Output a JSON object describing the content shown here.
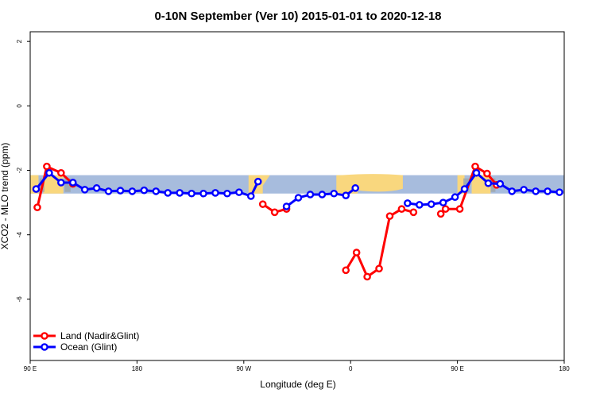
{
  "chart_data": {
    "type": "line",
    "title": "0-10N September (Ver 10)   2015-01-01 to 2020-12-18",
    "xlabel": "Longitude (deg E)",
    "ylabel": "XCO2 - MLO trend (ppm)",
    "x_ticks": [
      {
        "value": 90,
        "label": "90 E"
      },
      {
        "value": 180,
        "label": "180"
      },
      {
        "value": 270,
        "label": "90 W"
      },
      {
        "value": 360,
        "label": "0"
      },
      {
        "value": 450,
        "label": "90 E"
      },
      {
        "value": 540,
        "label": "180"
      }
    ],
    "y_ticks": [
      {
        "value": 2,
        "label": "2"
      },
      {
        "value": 0,
        "label": "0"
      },
      {
        "value": -2,
        "label": "-2"
      },
      {
        "value": -4,
        "label": "-4"
      },
      {
        "value": -6,
        "label": "-6"
      }
    ],
    "xlim": [
      90,
      540
    ],
    "ylim": [
      -7.9,
      2.3
    ],
    "band": {
      "ymin": -2.72,
      "ymax": -2.15,
      "ocean_color": "#a7bcdd",
      "land_color": "#f9d77e",
      "ice_color": "#9ea5a9"
    },
    "series": [
      {
        "name": "Land (Nadir&Glint)",
        "color": "#ff0000",
        "segments": [
          [
            [
              96,
              -3.15
            ],
            [
              104,
              -1.88
            ],
            [
              116,
              -2.08
            ],
            [
              126,
              -2.42
            ]
          ],
          [
            [
              286,
              -3.05
            ],
            [
              296,
              -3.3
            ],
            [
              306,
              -3.2
            ]
          ],
          [
            [
              356,
              -5.1
            ],
            [
              365,
              -4.55
            ],
            [
              374,
              -5.3
            ],
            [
              384,
              -5.05
            ],
            [
              393,
              -3.42
            ],
            [
              403,
              -3.2
            ],
            [
              413,
              -3.3
            ]
          ],
          [
            [
              436,
              -3.35
            ],
            [
              440,
              -3.2
            ],
            [
              452,
              -3.2
            ],
            [
              465,
              -1.88
            ],
            [
              475,
              -2.1
            ],
            [
              483,
              -2.45
            ]
          ]
        ]
      },
      {
        "name": "Ocean (Glint)",
        "color": "#0000ff",
        "segments": [
          [
            [
              95,
              -2.58
            ],
            [
              106,
              -2.08
            ],
            [
              116,
              -2.38
            ],
            [
              126,
              -2.38
            ],
            [
              136,
              -2.6
            ],
            [
              146,
              -2.55
            ],
            [
              156,
              -2.65
            ],
            [
              166,
              -2.63
            ],
            [
              176,
              -2.65
            ],
            [
              186,
              -2.62
            ],
            [
              196,
              -2.65
            ],
            [
              206,
              -2.7
            ],
            [
              216,
              -2.7
            ],
            [
              226,
              -2.72
            ],
            [
              236,
              -2.72
            ],
            [
              246,
              -2.7
            ],
            [
              256,
              -2.72
            ],
            [
              266,
              -2.68
            ],
            [
              276,
              -2.8
            ],
            [
              282,
              -2.35
            ]
          ],
          [
            [
              306,
              -3.12
            ],
            [
              316,
              -2.85
            ],
            [
              326,
              -2.75
            ],
            [
              336,
              -2.75
            ],
            [
              346,
              -2.72
            ],
            [
              356,
              -2.78
            ],
            [
              364,
              -2.55
            ]
          ],
          [
            [
              408,
              -3.02
            ],
            [
              418,
              -3.07
            ],
            [
              428,
              -3.05
            ],
            [
              438,
              -3.0
            ],
            [
              448,
              -2.83
            ],
            [
              456,
              -2.58
            ],
            [
              466,
              -2.08
            ],
            [
              476,
              -2.4
            ],
            [
              486,
              -2.42
            ],
            [
              496,
              -2.65
            ],
            [
              506,
              -2.6
            ],
            [
              516,
              -2.65
            ],
            [
              526,
              -2.65
            ],
            [
              536,
              -2.68
            ]
          ]
        ]
      }
    ],
    "legend": {
      "placement": "bottom-left"
    }
  }
}
